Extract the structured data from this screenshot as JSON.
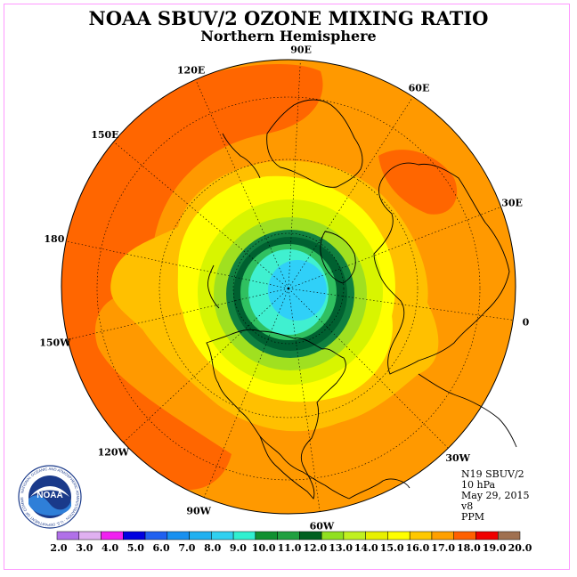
{
  "title": "NOAA SBUV/2 OZONE MIXING RATIO",
  "subtitle": "Northern Hemisphere",
  "longitude_labels": [
    "90E",
    "60E",
    "30E",
    "0",
    "30W",
    "60W",
    "90W",
    "120W",
    "150W",
    "180",
    "150E",
    "120E"
  ],
  "info": {
    "instrument": "N19 SBUV/2",
    "level": "10 hPa",
    "date": "May 29, 2015",
    "version": "v8",
    "units": "PPM"
  },
  "logo": {
    "text": "NOAA",
    "ring_text": "NATIONAL OCEANIC AND ATMOSPHERIC ADMINISTRATION · U.S. DEPARTMENT OF COMMERCE"
  },
  "colorbar": {
    "ticks": [
      "2.0",
      "3.0",
      "4.0",
      "5.0",
      "6.0",
      "7.0",
      "8.0",
      "9.0",
      "10.0",
      "11.0",
      "12.0",
      "13.0",
      "14.0",
      "15.0",
      "16.0",
      "17.0",
      "18.0",
      "19.0",
      "20.0"
    ],
    "colors": [
      "#b070e8",
      "#e0b0f0",
      "#f020f0",
      "#0000e0",
      "#2060f0",
      "#1890f0",
      "#20b0f0",
      "#30d0f0",
      "#30f0d0",
      "#109030",
      "#20a040",
      "#006020",
      "#90e020",
      "#c0f020",
      "#e8f000",
      "#ffff00",
      "#ffc800",
      "#ffa000",
      "#ff6000",
      "#f00000",
      "#a07050"
    ]
  },
  "map_colors": {
    "c17": "#ff9900",
    "c18": "#ff6600",
    "c16": "#ffc000",
    "c15": "#ffff00",
    "c14": "#d8f500",
    "c13": "#a0e020",
    "c12": "#006030",
    "c11": "#108040",
    "c10": "#30c060",
    "c9": "#40f0d0",
    "c8": "#30d0f8",
    "c7": "#20b0f0"
  }
}
